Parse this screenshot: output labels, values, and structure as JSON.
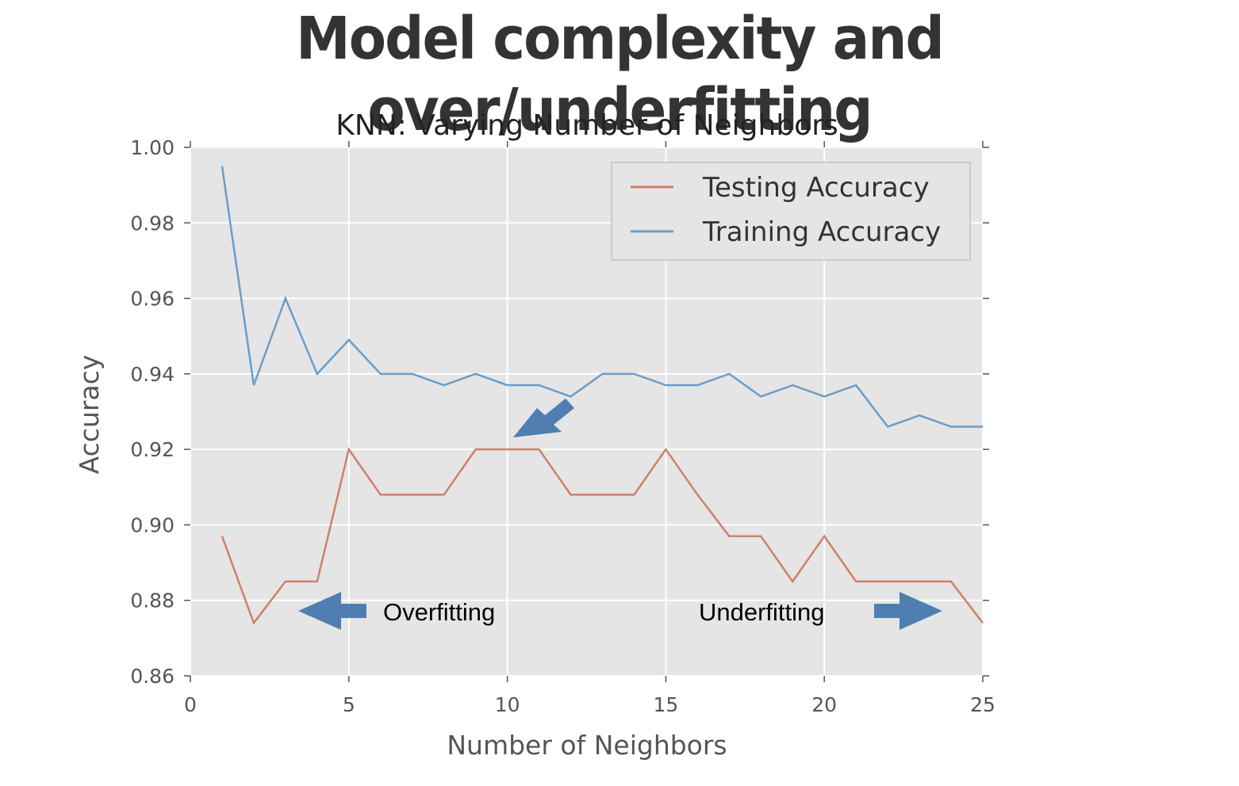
{
  "slide": {
    "title": "Model complexity and over/underfitting"
  },
  "chart_data": {
    "type": "line",
    "title": "KNN: Varying Number of Neighbors",
    "xlabel": "Number of Neighbors",
    "ylabel": "Accuracy",
    "xlim": [
      0,
      25
    ],
    "ylim": [
      0.86,
      1.0
    ],
    "xticks": [
      0,
      5,
      10,
      15,
      20,
      25
    ],
    "xtick_labels": [
      "0",
      "5",
      "10",
      "15",
      "20",
      "25"
    ],
    "yticks": [
      0.86,
      0.88,
      0.9,
      0.92,
      0.94,
      0.96,
      0.98,
      1.0
    ],
    "ytick_labels": [
      "0.86",
      "0.88",
      "0.90",
      "0.92",
      "0.94",
      "0.96",
      "0.98",
      "1.00"
    ],
    "grid": true,
    "legend_position": "top-right",
    "x": [
      1,
      2,
      3,
      4,
      5,
      6,
      7,
      8,
      9,
      10,
      11,
      12,
      13,
      14,
      15,
      16,
      17,
      18,
      19,
      20,
      21,
      22,
      23,
      24,
      25
    ],
    "series": [
      {
        "name": "Testing Accuracy",
        "color": "#d0806a",
        "values": [
          0.897,
          0.874,
          0.885,
          0.885,
          0.92,
          0.908,
          0.908,
          0.908,
          0.92,
          0.92,
          0.92,
          0.908,
          0.908,
          0.908,
          0.92,
          0.908,
          0.897,
          0.897,
          0.885,
          0.897,
          0.885,
          0.885,
          0.885,
          0.885,
          0.874
        ]
      },
      {
        "name": "Training Accuracy",
        "color": "#6b9ec8",
        "values": [
          0.995,
          0.937,
          0.96,
          0.94,
          0.949,
          0.94,
          0.94,
          0.937,
          0.94,
          0.937,
          0.937,
          0.934,
          0.94,
          0.94,
          0.937,
          0.937,
          0.94,
          0.934,
          0.937,
          0.934,
          0.937,
          0.926,
          0.929,
          0.926,
          0.926
        ]
      }
    ],
    "annotations": [
      {
        "text": "Overfitting",
        "arrow_direction": "left"
      },
      {
        "text": "Underfitting",
        "arrow_direction": "right"
      },
      {
        "text": "",
        "arrow_direction": "down-left",
        "points_to": [
          10.2,
          0.923
        ]
      }
    ],
    "colors": {
      "plot_background": "#e5e5e5",
      "grid": "#ffffff",
      "arrow": "#4f7fb0"
    }
  }
}
